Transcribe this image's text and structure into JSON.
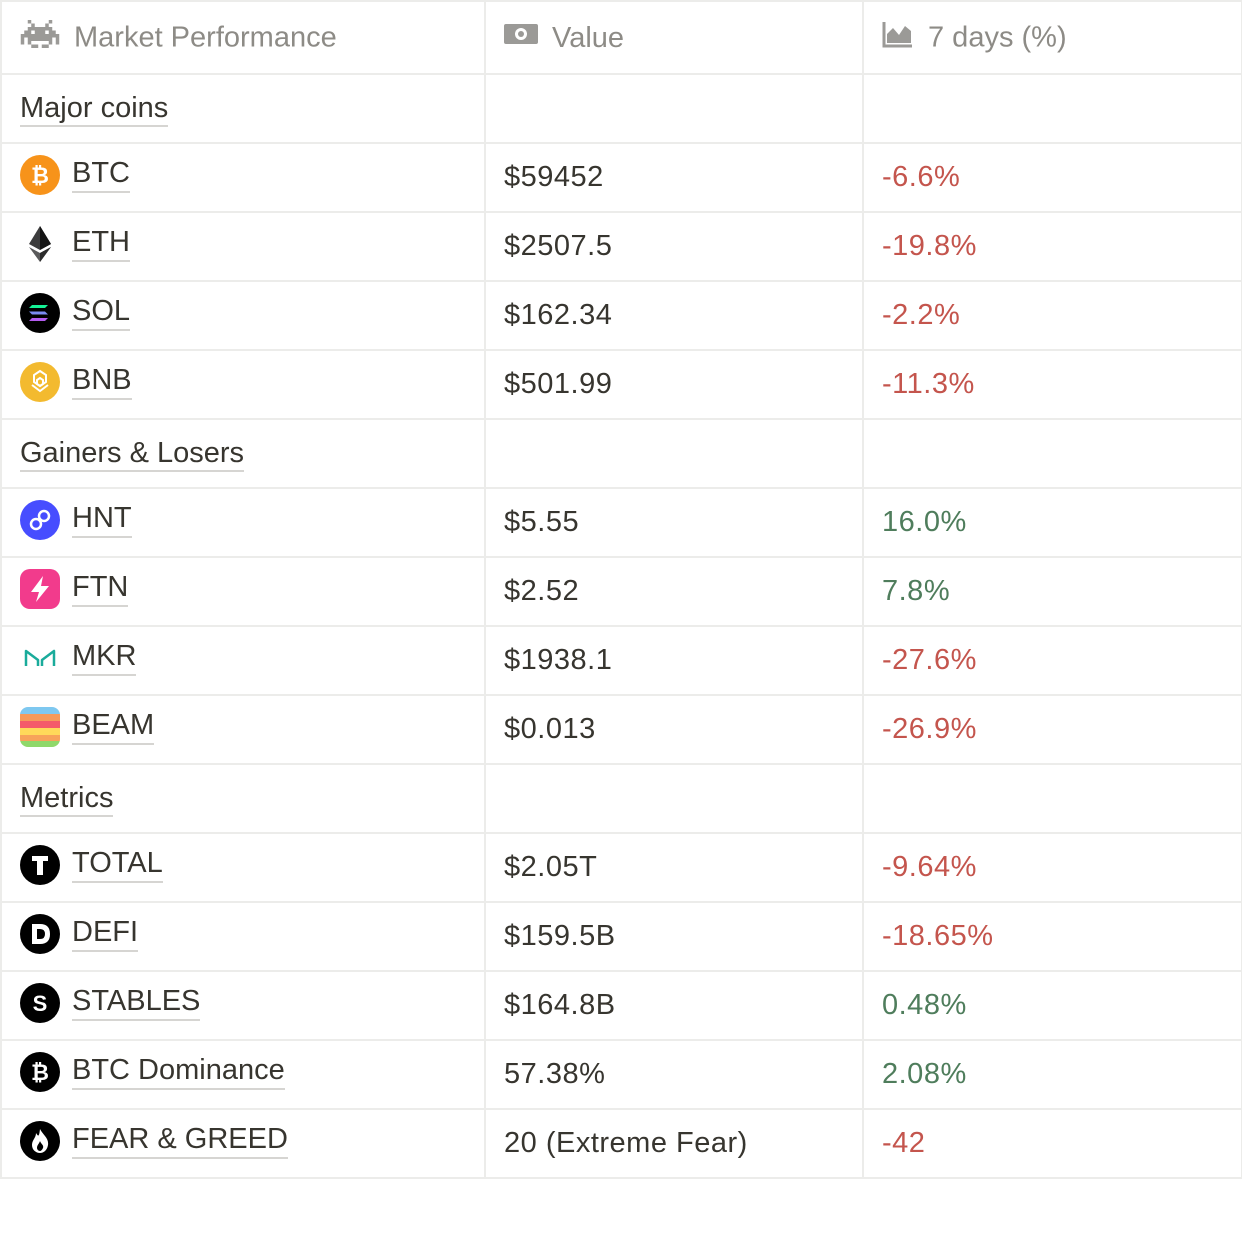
{
  "header": {
    "col1": "Market Performance",
    "col2": "Value",
    "col3": "7 days (%)",
    "col1_icon": "space-invader-icon",
    "col2_icon": "banknote-icon",
    "col3_icon": "area-chart-icon"
  },
  "sections": [
    {
      "title": "Major coins",
      "rows": [
        {
          "symbol": "BTC",
          "value": "$59452",
          "change": "-6.6%",
          "trend": "neg",
          "icon": "bitcoin-icon",
          "color": "#f7931a"
        },
        {
          "symbol": "ETH",
          "value": "$2507.5",
          "change": "-19.8%",
          "trend": "neg",
          "icon": "ethereum-icon",
          "color": "#3c3c3d"
        },
        {
          "symbol": "SOL",
          "value": "$162.34",
          "change": "-2.2%",
          "trend": "neg",
          "icon": "solana-icon",
          "color": "#000000"
        },
        {
          "symbol": "BNB",
          "value": "$501.99",
          "change": "-11.3%",
          "trend": "neg",
          "icon": "bnb-icon",
          "color": "#f3ba2f"
        }
      ]
    },
    {
      "title": "Gainers & Losers",
      "rows": [
        {
          "symbol": "HNT",
          "value": "$5.55",
          "change": "16.0%",
          "trend": "pos",
          "icon": "helium-icon",
          "color": "#474dff"
        },
        {
          "symbol": "FTN",
          "value": "$2.52",
          "change": "7.8%",
          "trend": "pos",
          "icon": "lightning-icon",
          "color": "#f23b8c"
        },
        {
          "symbol": "MKR",
          "value": "$1938.1",
          "change": "-27.6%",
          "trend": "neg",
          "icon": "maker-icon",
          "color": "#1aab9b"
        },
        {
          "symbol": "BEAM",
          "value": "$0.013",
          "change": "-26.9%",
          "trend": "neg",
          "icon": "beam-icon",
          "color": "#ff6b6b"
        }
      ]
    },
    {
      "title": "Metrics",
      "rows": [
        {
          "symbol": "TOTAL",
          "value": "$2.05T",
          "change": "-9.64%",
          "trend": "neg",
          "icon": "letter-t-icon",
          "color": "#000000"
        },
        {
          "symbol": "DEFI",
          "value": "$159.5B",
          "change": "-18.65%",
          "trend": "neg",
          "icon": "letter-d-icon",
          "color": "#000000"
        },
        {
          "symbol": "STABLES",
          "value": "$164.8B",
          "change": "0.48%",
          "trend": "pos",
          "icon": "letter-s-icon",
          "color": "#000000"
        },
        {
          "symbol": "BTC Dominance",
          "value": "57.38%",
          "change": "2.08%",
          "trend": "pos",
          "icon": "bitcoin-icon",
          "color": "#000000"
        },
        {
          "symbol": "FEAR & GREED",
          "value": "20 (Extreme Fear)",
          "change": "-42",
          "trend": "neg",
          "icon": "flame-icon",
          "color": "#000000"
        }
      ]
    }
  ]
}
